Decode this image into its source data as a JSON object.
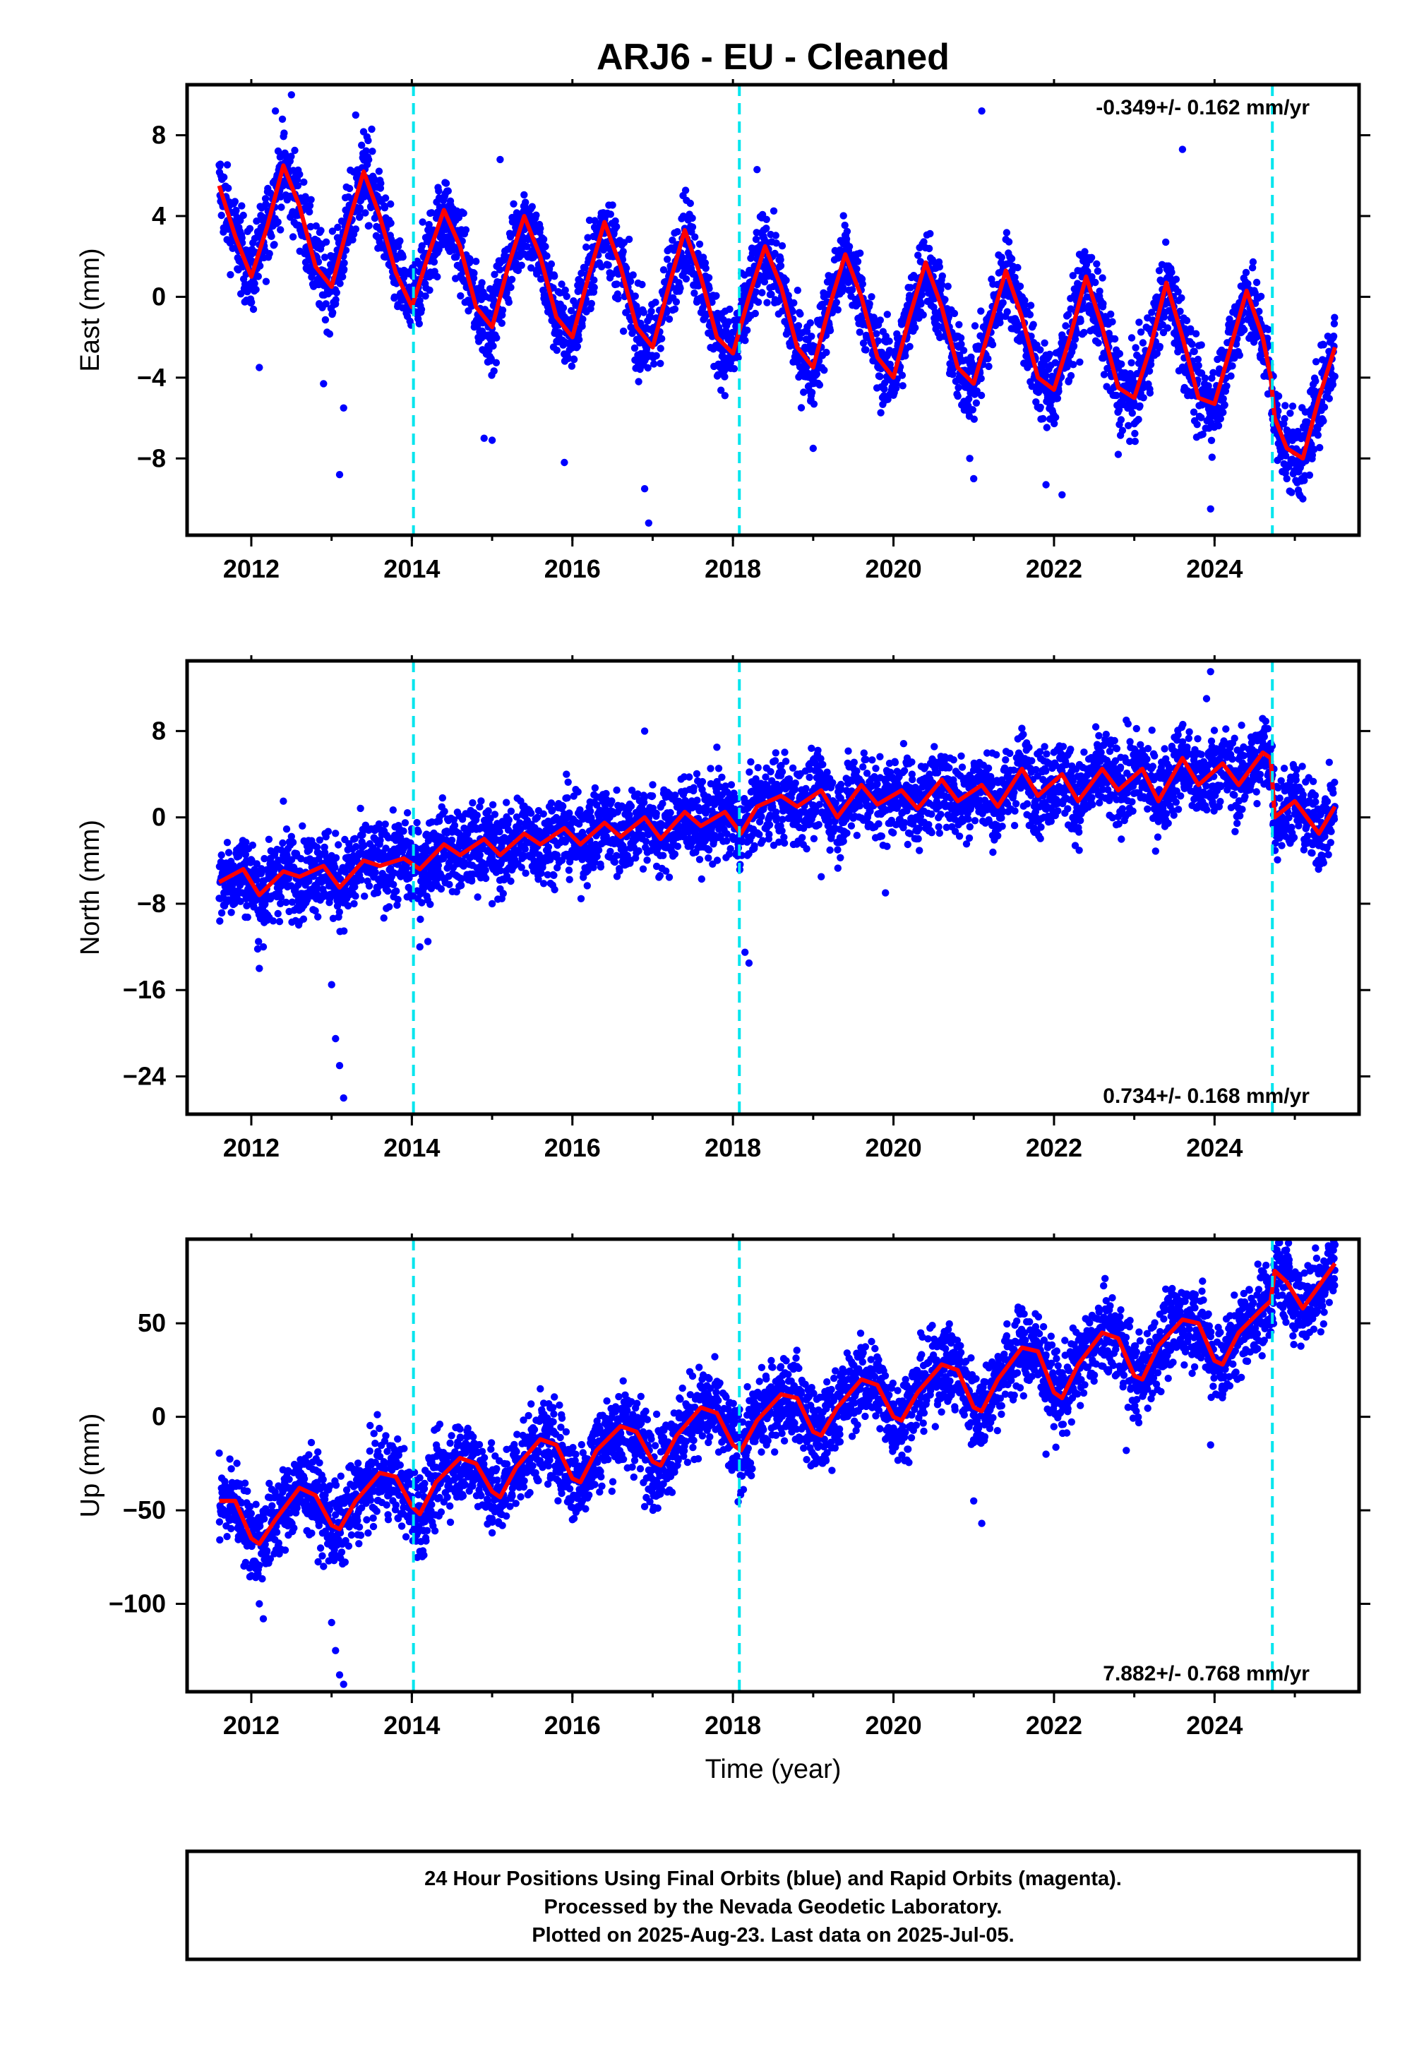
{
  "title": "ARJ6  - EU - Cleaned",
  "footer": {
    "line1": "24 Hour Positions Using Final Orbits (blue) and Rapid Orbits (magenta).",
    "line2": "Processed by the Nevada Geodetic Laboratory.",
    "line3": "Plotted on 2025-Aug-23. Last data on 2025-Jul-05."
  },
  "colors": {
    "points": "#0000ff",
    "model": "#ff0000",
    "breaks": "#00e5ee",
    "frame": "#000000"
  },
  "chart_data": [
    {
      "type": "scatter",
      "component": "east",
      "ylabel": "East (mm)",
      "xlabel": "",
      "rate_label": "-0.349+/- 0.162 mm/yr",
      "rate_position": "top-right",
      "xlim": [
        2011.2,
        2025.8
      ],
      "ylim": [
        -11.8,
        10.5
      ],
      "xticks": [
        2012,
        2014,
        2016,
        2018,
        2020,
        2022,
        2024
      ],
      "xtick_labels": [
        "2012",
        "2014",
        "2016",
        "2018",
        "2020",
        "2022",
        "2024"
      ],
      "yticks": [
        -8,
        -4,
        0,
        4,
        8
      ],
      "ytick_labels": [
        "−8",
        "−4",
        "0",
        "4",
        "8"
      ],
      "breaks": [
        2014.02,
        2018.08,
        2024.72
      ],
      "model": {
        "x": [
          2011.6,
          2011.8,
          2012.0,
          2012.2,
          2012.4,
          2012.6,
          2012.8,
          2013.0,
          2013.2,
          2013.4,
          2013.6,
          2013.8,
          2014.0,
          2014.2,
          2014.4,
          2014.6,
          2014.8,
          2015.0,
          2015.2,
          2015.4,
          2015.6,
          2015.8,
          2016.0,
          2016.2,
          2016.4,
          2016.6,
          2016.8,
          2017.0,
          2017.2,
          2017.4,
          2017.6,
          2017.8,
          2018.0,
          2018.2,
          2018.4,
          2018.6,
          2018.8,
          2019.0,
          2019.2,
          2019.4,
          2019.6,
          2019.8,
          2020.0,
          2020.2,
          2020.4,
          2020.6,
          2020.8,
          2021.0,
          2021.2,
          2021.4,
          2021.6,
          2021.8,
          2022.0,
          2022.2,
          2022.4,
          2022.6,
          2022.8,
          2023.0,
          2023.2,
          2023.4,
          2023.6,
          2023.8,
          2024.0,
          2024.2,
          2024.4,
          2024.6,
          2024.7,
          2024.75,
          2024.9,
          2025.1,
          2025.3,
          2025.5
        ],
        "y": [
          5.5,
          3.0,
          1.0,
          3.5,
          6.5,
          4.5,
          1.5,
          0.5,
          3.5,
          6.2,
          4.0,
          1.2,
          -0.5,
          2.0,
          4.3,
          2.5,
          -0.5,
          -1.5,
          1.5,
          4.0,
          2.0,
          -1.0,
          -2.0,
          1.0,
          3.7,
          1.5,
          -1.5,
          -2.5,
          0.5,
          3.3,
          1.0,
          -2.0,
          -2.8,
          0.0,
          2.5,
          0.5,
          -2.5,
          -3.5,
          -0.5,
          2.1,
          0.0,
          -3.0,
          -4.0,
          -1.0,
          1.7,
          -0.5,
          -3.5,
          -4.3,
          -1.5,
          1.3,
          -1.0,
          -4.0,
          -4.6,
          -2.0,
          1.0,
          -1.5,
          -4.5,
          -5.0,
          -2.5,
          0.7,
          -2.0,
          -5.0,
          -5.3,
          -2.5,
          0.3,
          -2.0,
          -4.0,
          -6.0,
          -7.5,
          -8.0,
          -5.0,
          -2.5
        ]
      },
      "outliers": [
        [
          2012.1,
          -3.5
        ],
        [
          2012.3,
          9.2
        ],
        [
          2012.5,
          10.0
        ],
        [
          2012.9,
          -4.3
        ],
        [
          2013.1,
          -8.8
        ],
        [
          2013.15,
          -5.5
        ],
        [
          2013.3,
          9.0
        ],
        [
          2013.5,
          8.3
        ],
        [
          2014.9,
          -7.0
        ],
        [
          2015.0,
          -7.1
        ],
        [
          2015.1,
          6.8
        ],
        [
          2015.9,
          -8.2
        ],
        [
          2016.9,
          -9.5
        ],
        [
          2016.95,
          -11.2
        ],
        [
          2018.3,
          6.3
        ],
        [
          2019.0,
          -7.5
        ],
        [
          2020.95,
          -8.0
        ],
        [
          2021.0,
          -9.0
        ],
        [
          2021.1,
          9.2
        ],
        [
          2021.9,
          -9.3
        ],
        [
          2022.1,
          -9.8
        ],
        [
          2022.8,
          -7.8
        ],
        [
          2023.6,
          7.3
        ],
        [
          2023.95,
          -10.5
        ],
        [
          2024.9,
          -9.0
        ],
        [
          2025.1,
          -10.0
        ]
      ]
    },
    {
      "type": "scatter",
      "component": "north",
      "ylabel": "North (mm)",
      "xlabel": "",
      "rate_label": "0.734+/- 0.168 mm/yr",
      "rate_position": "bottom-right",
      "xlim": [
        2011.2,
        2025.8
      ],
      "ylim": [
        -27.5,
        14.5
      ],
      "xticks": [
        2012,
        2014,
        2016,
        2018,
        2020,
        2022,
        2024
      ],
      "xtick_labels": [
        "2012",
        "2014",
        "2016",
        "2018",
        "2020",
        "2022",
        "2024"
      ],
      "yticks": [
        -24,
        -16,
        -8,
        0,
        8
      ],
      "ytick_labels": [
        "−24",
        "−16",
        "−8",
        "0",
        "8"
      ],
      "breaks": [
        2014.02,
        2018.08,
        2024.72
      ],
      "model": {
        "x": [
          2011.6,
          2011.9,
          2012.1,
          2012.4,
          2012.6,
          2012.9,
          2013.1,
          2013.4,
          2013.6,
          2013.9,
          2014.1,
          2014.4,
          2014.6,
          2014.9,
          2015.1,
          2015.4,
          2015.6,
          2015.9,
          2016.1,
          2016.4,
          2016.6,
          2016.9,
          2017.1,
          2017.4,
          2017.6,
          2017.9,
          2018.0,
          2018.1,
          2018.3,
          2018.6,
          2018.8,
          2019.1,
          2019.3,
          2019.6,
          2019.8,
          2020.1,
          2020.3,
          2020.6,
          2020.8,
          2021.1,
          2021.3,
          2021.6,
          2021.8,
          2022.1,
          2022.3,
          2022.6,
          2022.8,
          2023.1,
          2023.3,
          2023.6,
          2023.8,
          2024.1,
          2024.3,
          2024.6,
          2024.7,
          2024.75,
          2025.0,
          2025.3,
          2025.5
        ],
        "y": [
          -6.0,
          -4.8,
          -7.2,
          -5.0,
          -5.5,
          -4.5,
          -6.5,
          -4.0,
          -4.5,
          -3.8,
          -4.8,
          -2.5,
          -3.5,
          -2.0,
          -3.5,
          -1.5,
          -2.5,
          -1.0,
          -2.5,
          -0.5,
          -1.8,
          0.0,
          -2.0,
          0.5,
          -0.8,
          0.5,
          -0.5,
          -1.5,
          1.0,
          2.0,
          1.0,
          2.5,
          0.0,
          3.0,
          1.2,
          2.5,
          0.8,
          3.5,
          1.5,
          3.0,
          1.0,
          4.5,
          2.0,
          4.0,
          1.5,
          4.5,
          2.5,
          4.5,
          1.5,
          5.5,
          3.0,
          5.0,
          3.0,
          6.0,
          5.5,
          0.0,
          1.5,
          -1.5,
          1.0
        ]
      },
      "outliers": [
        [
          2012.1,
          -14.0
        ],
        [
          2012.15,
          -12.0
        ],
        [
          2012.4,
          1.5
        ],
        [
          2013.0,
          -15.5
        ],
        [
          2013.05,
          -20.5
        ],
        [
          2013.1,
          -23.0
        ],
        [
          2013.15,
          -26.0
        ],
        [
          2014.1,
          -12.0
        ],
        [
          2014.2,
          -11.5
        ],
        [
          2015.0,
          -8.0
        ],
        [
          2016.9,
          8.0
        ],
        [
          2017.8,
          6.5
        ],
        [
          2018.15,
          -12.5
        ],
        [
          2018.2,
          -13.5
        ],
        [
          2019.1,
          -5.5
        ],
        [
          2019.9,
          -7.0
        ],
        [
          2022.9,
          9.0
        ],
        [
          2023.95,
          13.5
        ],
        [
          2023.9,
          11.0
        ]
      ]
    },
    {
      "type": "scatter",
      "component": "up",
      "ylabel": "Up (mm)",
      "xlabel": "Time (year)",
      "rate_label": "7.882+/- 0.768 mm/yr",
      "rate_position": "bottom-right",
      "xlim": [
        2011.2,
        2025.8
      ],
      "ylim": [
        -147,
        95
      ],
      "xticks": [
        2012,
        2014,
        2016,
        2018,
        2020,
        2022,
        2024
      ],
      "xtick_labels": [
        "2012",
        "2014",
        "2016",
        "2018",
        "2020",
        "2022",
        "2024"
      ],
      "yticks": [
        -100,
        -50,
        0,
        50
      ],
      "ytick_labels": [
        "−100",
        "−50",
        "0",
        "50"
      ],
      "breaks": [
        2014.02,
        2018.08,
        2024.72
      ],
      "model": {
        "x": [
          2011.6,
          2011.8,
          2012.0,
          2012.1,
          2012.3,
          2012.6,
          2012.8,
          2013.0,
          2013.1,
          2013.3,
          2013.6,
          2013.8,
          2014.0,
          2014.1,
          2014.3,
          2014.6,
          2014.8,
          2015.0,
          2015.1,
          2015.3,
          2015.6,
          2015.8,
          2016.0,
          2016.1,
          2016.3,
          2016.6,
          2016.8,
          2017.0,
          2017.1,
          2017.3,
          2017.6,
          2017.8,
          2018.0,
          2018.1,
          2018.3,
          2018.6,
          2018.8,
          2019.0,
          2019.1,
          2019.3,
          2019.6,
          2019.8,
          2020.0,
          2020.1,
          2020.3,
          2020.6,
          2020.8,
          2021.0,
          2021.1,
          2021.3,
          2021.6,
          2021.8,
          2022.0,
          2022.1,
          2022.3,
          2022.6,
          2022.8,
          2023.0,
          2023.1,
          2023.3,
          2023.6,
          2023.8,
          2024.0,
          2024.1,
          2024.3,
          2024.6,
          2024.7,
          2024.75,
          2024.9,
          2025.1,
          2025.3,
          2025.5
        ],
        "y": [
          -45,
          -45,
          -65,
          -68,
          -55,
          -38,
          -42,
          -58,
          -60,
          -45,
          -30,
          -32,
          -48,
          -52,
          -35,
          -22,
          -25,
          -40,
          -43,
          -27,
          -12,
          -15,
          -33,
          -35,
          -18,
          -5,
          -8,
          -24,
          -26,
          -10,
          5,
          2,
          -15,
          -18,
          -2,
          12,
          10,
          -8,
          -10,
          5,
          20,
          17,
          0,
          -2,
          13,
          28,
          25,
          5,
          3,
          20,
          37,
          35,
          13,
          10,
          28,
          45,
          42,
          22,
          20,
          38,
          52,
          50,
          30,
          28,
          45,
          58,
          62,
          78,
          72,
          58,
          70,
          82
        ]
      },
      "outliers": [
        [
          2012.1,
          -100
        ],
        [
          2012.15,
          -108
        ],
        [
          2012.9,
          -80
        ],
        [
          2013.0,
          -110
        ],
        [
          2013.05,
          -125
        ],
        [
          2013.1,
          -138
        ],
        [
          2013.15,
          -143
        ],
        [
          2014.1,
          -72
        ],
        [
          2014.15,
          -74
        ],
        [
          2015.0,
          -62
        ],
        [
          2016.0,
          -55
        ],
        [
          2016.9,
          -48
        ],
        [
          2018.1,
          -40
        ],
        [
          2019.9,
          -12
        ],
        [
          2021.0,
          -45
        ],
        [
          2021.1,
          -57
        ],
        [
          2021.9,
          -20
        ],
        [
          2022.9,
          -18
        ],
        [
          2023.95,
          -15
        ],
        [
          2025.5,
          92
        ]
      ]
    }
  ]
}
